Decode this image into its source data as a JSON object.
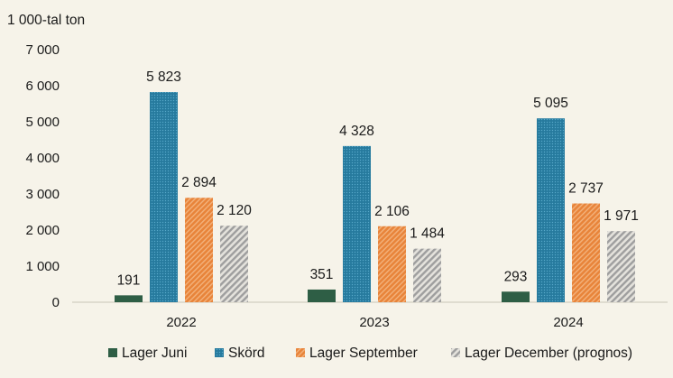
{
  "chart_data": {
    "type": "bar",
    "unit_label": "1 000-tal ton",
    "categories": [
      "2022",
      "2023",
      "2024"
    ],
    "series": [
      {
        "name": "Lager Juni",
        "values": [
          191,
          351,
          293
        ],
        "labels": [
          "191",
          "351",
          "293"
        ],
        "color": "#2e5e45",
        "pattern": "solid"
      },
      {
        "name": "Skörd",
        "values": [
          5823,
          4328,
          5095
        ],
        "labels": [
          "5 823",
          "4 328",
          "5 095"
        ],
        "color": "#2a7fa3",
        "pattern": "dotted"
      },
      {
        "name": "Lager September",
        "values": [
          2894,
          2106,
          2737
        ],
        "labels": [
          "2 894",
          "2 106",
          "2 737"
        ],
        "color": "#e8843a",
        "pattern": "diagonal"
      },
      {
        "name": "Lager December (prognos)",
        "values": [
          2120,
          1484,
          1971
        ],
        "labels": [
          "2 120",
          "1 484",
          "1 971"
        ],
        "color": "#b5b5b5",
        "pattern": "diagonal-light"
      }
    ],
    "yticks": [
      "0",
      "1 000",
      "2 000",
      "3 000",
      "4 000",
      "5 000",
      "6 000",
      "7 000"
    ],
    "ylim": [
      0,
      7000
    ],
    "grid": false,
    "legend_position": "bottom"
  }
}
